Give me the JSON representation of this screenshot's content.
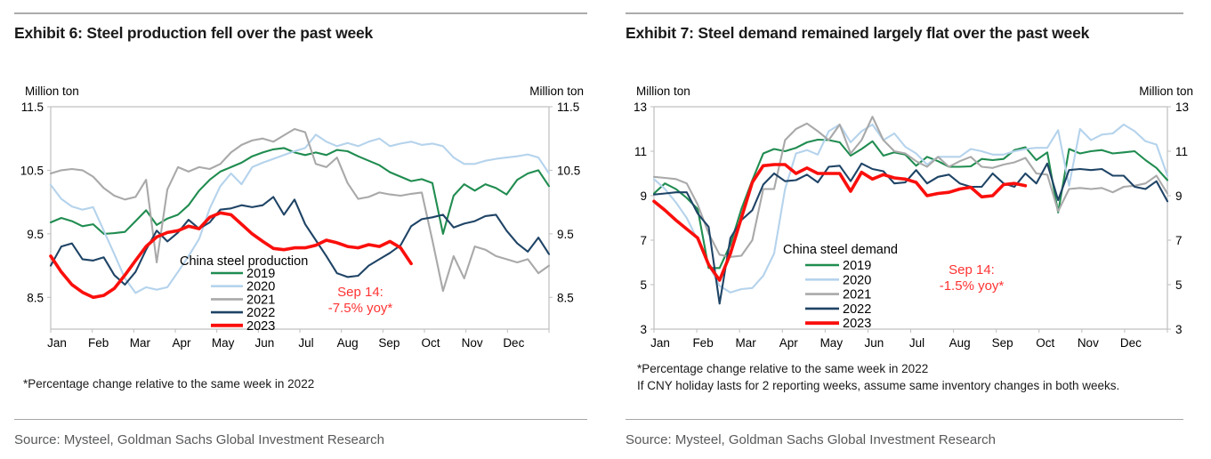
{
  "colors": {
    "axis": "#bfbfbf",
    "tick_text": "#000000",
    "title_text": "#1a1a1a",
    "source_text": "#58595b",
    "annotation": "#ff3333",
    "rule_top": "#ababab",
    "rule_bottom": "#a6a6a6",
    "series_2019": "#208c50",
    "series_2020": "#b5d3ec",
    "series_2021": "#a9a9a9",
    "series_2022": "#1f4466",
    "series_2023": "#fa0f0c"
  },
  "exhibits": [
    {
      "title": "Exhibit 6: Steel production fell over the past week",
      "footnote": "*Percentage change relative to the same week in 2022",
      "source": "Source: Mysteel, Goldman Sachs Global Investment Research"
    },
    {
      "title": "Exhibit 7: Steel demand remained largely flat over the past week",
      "footnote": "*Percentage change relative to the same week in 2022",
      "footnote2": "If CNY holiday lasts for 2 reporting weeks, assume same inventory changes in both weeks.",
      "source": "Source: Mysteel, Goldman Sachs Global Investment Research"
    }
  ],
  "chart_data": [
    {
      "type": "line",
      "title": "China steel production",
      "legend_title": "China steel production",
      "ylabel": "Million ton",
      "ylabel_right": "Million ton",
      "ylim": [
        8,
        11.5
      ],
      "ytick_step": 0.5,
      "grid": false,
      "legend_position": "inside-bottom-left",
      "x_categories": [
        "Jan",
        "Feb",
        "Mar",
        "Apr",
        "May",
        "Jun",
        "Jul",
        "Aug",
        "Sep",
        "Oct",
        "Nov",
        "Dec"
      ],
      "points_per_month": 4,
      "annotation": [
        "Sep 14:",
        "-7.5% yoy*"
      ],
      "series": [
        {
          "name": "2019",
          "color": "#208c50",
          "values": [
            9.68,
            9.75,
            9.7,
            9.62,
            9.65,
            9.5,
            9.51,
            9.53,
            9.7,
            9.87,
            9.64,
            9.74,
            9.8,
            9.95,
            10.18,
            10.35,
            10.48,
            10.55,
            10.62,
            10.72,
            10.78,
            10.83,
            10.85,
            10.78,
            10.74,
            10.78,
            10.74,
            10.82,
            10.8,
            10.72,
            10.65,
            10.58,
            10.47,
            10.4,
            10.33,
            10.36,
            10.3,
            9.5,
            10.1,
            10.28,
            10.18,
            10.28,
            10.22,
            10.12,
            10.35,
            10.45,
            10.5,
            10.25
          ]
        },
        {
          "name": "2020",
          "color": "#b5d3ec",
          "values": [
            10.27,
            10.05,
            9.93,
            9.88,
            9.92,
            9.55,
            9.18,
            8.8,
            8.57,
            8.66,
            8.62,
            8.66,
            8.9,
            9.15,
            9.42,
            9.9,
            10.25,
            10.45,
            10.28,
            10.55,
            10.62,
            10.68,
            10.74,
            10.8,
            10.85,
            11.06,
            10.95,
            10.88,
            10.93,
            10.88,
            10.95,
            11.0,
            10.88,
            10.92,
            10.95,
            10.9,
            10.92,
            10.88,
            10.7,
            10.6,
            10.6,
            10.65,
            10.68,
            10.7,
            10.72,
            10.75,
            10.7,
            10.45
          ]
        },
        {
          "name": "2021",
          "color": "#a9a9a9",
          "values": [
            10.45,
            10.5,
            10.52,
            10.5,
            10.4,
            10.22,
            10.1,
            10.04,
            10.08,
            10.35,
            9.05,
            10.2,
            10.55,
            10.48,
            10.55,
            10.52,
            10.6,
            10.78,
            10.9,
            10.97,
            11.0,
            10.95,
            11.05,
            11.15,
            11.1,
            10.6,
            10.55,
            10.7,
            10.3,
            10.05,
            10.08,
            10.15,
            10.12,
            10.1,
            10.13,
            10.15,
            9.4,
            8.6,
            9.15,
            8.8,
            9.3,
            9.25,
            9.15,
            9.1,
            9.05,
            9.1,
            8.88,
            9.0
          ]
        },
        {
          "name": "2022",
          "color": "#1f4466",
          "values": [
            9.0,
            9.3,
            9.35,
            9.1,
            9.08,
            9.13,
            8.85,
            8.7,
            8.9,
            9.25,
            9.55,
            9.38,
            9.52,
            9.72,
            9.58,
            9.68,
            9.88,
            9.9,
            9.95,
            9.92,
            9.95,
            10.08,
            9.8,
            10.04,
            9.65,
            9.4,
            9.15,
            8.88,
            8.82,
            8.84,
            9.0,
            9.1,
            9.2,
            9.32,
            9.62,
            9.73,
            9.76,
            9.8,
            9.6,
            9.66,
            9.7,
            9.78,
            9.8,
            9.55,
            9.35,
            9.22,
            9.44,
            9.18
          ]
        },
        {
          "name": "2023",
          "color": "#fa0f0c",
          "values": [
            9.15,
            8.9,
            8.7,
            8.58,
            8.5,
            8.53,
            8.64,
            8.85,
            9.08,
            9.3,
            9.45,
            9.52,
            9.55,
            9.62,
            9.58,
            9.76,
            9.83,
            9.8,
            9.65,
            9.5,
            9.38,
            9.27,
            9.25,
            9.28,
            9.28,
            9.32,
            9.4,
            9.36,
            9.3,
            9.28,
            9.33,
            9.3,
            9.38,
            9.28,
            9.03
          ]
        }
      ]
    },
    {
      "type": "line",
      "title": "China steel demand",
      "legend_title": "China steel demand",
      "ylabel": "Million ton",
      "ylabel_right": "Million ton",
      "ylim": [
        3,
        13
      ],
      "ytick_step": 1,
      "grid": false,
      "legend_position": "inside-bottom-left",
      "x_categories": [
        "Jan",
        "Feb",
        "Mar",
        "Apr",
        "May",
        "Jun",
        "Jul",
        "Aug",
        "Sep",
        "Oct",
        "Nov",
        "Dec"
      ],
      "points_per_month": 4,
      "annotation": [
        "Sep 14:",
        "-1.5% yoy*"
      ],
      "series": [
        {
          "name": "2019",
          "color": "#208c50",
          "values": [
            9.1,
            9.55,
            9.3,
            8.9,
            8.4,
            5.75,
            5.75,
            6.8,
            8.4,
            9.7,
            10.9,
            11.1,
            11.0,
            11.15,
            11.4,
            11.52,
            11.5,
            11.4,
            10.8,
            11.1,
            11.45,
            10.8,
            10.95,
            10.85,
            10.35,
            10.75,
            10.55,
            10.3,
            10.3,
            10.32,
            10.65,
            10.6,
            10.65,
            11.05,
            11.18,
            10.6,
            10.95,
            8.25,
            11.1,
            10.9,
            11.0,
            11.05,
            10.9,
            10.95,
            11.0,
            10.6,
            10.25,
            9.7
          ]
        },
        {
          "name": "2020",
          "color": "#b5d3ec",
          "values": [
            9.75,
            9.3,
            8.7,
            8.0,
            7.0,
            5.9,
            4.95,
            4.65,
            4.8,
            4.85,
            5.4,
            6.4,
            9.3,
            10.9,
            11.05,
            10.85,
            11.9,
            12.2,
            11.4,
            11.9,
            12.2,
            11.5,
            11.8,
            11.2,
            10.9,
            10.4,
            10.75,
            10.75,
            10.75,
            11.1,
            11.0,
            10.85,
            10.85,
            11.0,
            11.1,
            11.15,
            11.15,
            11.95,
            9.45,
            12.0,
            11.5,
            11.75,
            11.8,
            12.2,
            11.9,
            11.45,
            11.3,
            9.9
          ]
        },
        {
          "name": "2021",
          "color": "#a9a9a9",
          "values": [
            9.85,
            9.8,
            9.75,
            9.55,
            8.6,
            7.3,
            6.35,
            6.25,
            6.3,
            7.0,
            9.3,
            9.3,
            11.5,
            12.0,
            12.25,
            11.9,
            11.5,
            12.2,
            10.9,
            11.5,
            12.55,
            11.5,
            11.0,
            10.9,
            10.55,
            10.3,
            10.75,
            10.3,
            10.55,
            10.75,
            10.3,
            10.25,
            10.4,
            10.5,
            10.7,
            10.0,
            9.95,
            8.3,
            9.3,
            9.35,
            9.3,
            9.35,
            9.15,
            9.4,
            9.45,
            9.55,
            9.9,
            9.1
          ]
        },
        {
          "name": "2022",
          "color": "#1f4466",
          "values": [
            9.05,
            9.1,
            9.15,
            9.15,
            8.2,
            7.6,
            4.15,
            7.1,
            7.9,
            8.35,
            9.5,
            10.0,
            9.65,
            9.7,
            9.95,
            9.6,
            10.3,
            10.35,
            9.65,
            10.45,
            10.2,
            10.1,
            9.55,
            9.6,
            10.15,
            9.55,
            9.85,
            9.95,
            9.55,
            9.4,
            9.4,
            10.0,
            9.55,
            9.4,
            10.0,
            9.55,
            10.45,
            8.8,
            10.15,
            10.2,
            10.15,
            10.2,
            9.9,
            9.9,
            9.4,
            9.3,
            9.65,
            8.75
          ]
        },
        {
          "name": "2023",
          "color": "#fa0f0c",
          "values": [
            8.75,
            8.35,
            7.9,
            7.5,
            7.1,
            5.9,
            5.2,
            6.4,
            8.0,
            9.6,
            10.35,
            10.4,
            10.4,
            10.0,
            10.25,
            10.0,
            10.0,
            10.0,
            9.2,
            10.05,
            9.75,
            9.95,
            9.8,
            9.75,
            9.6,
            9.0,
            9.1,
            9.15,
            9.3,
            9.38,
            8.95,
            9.0,
            9.5,
            9.55,
            9.45
          ]
        }
      ]
    }
  ]
}
